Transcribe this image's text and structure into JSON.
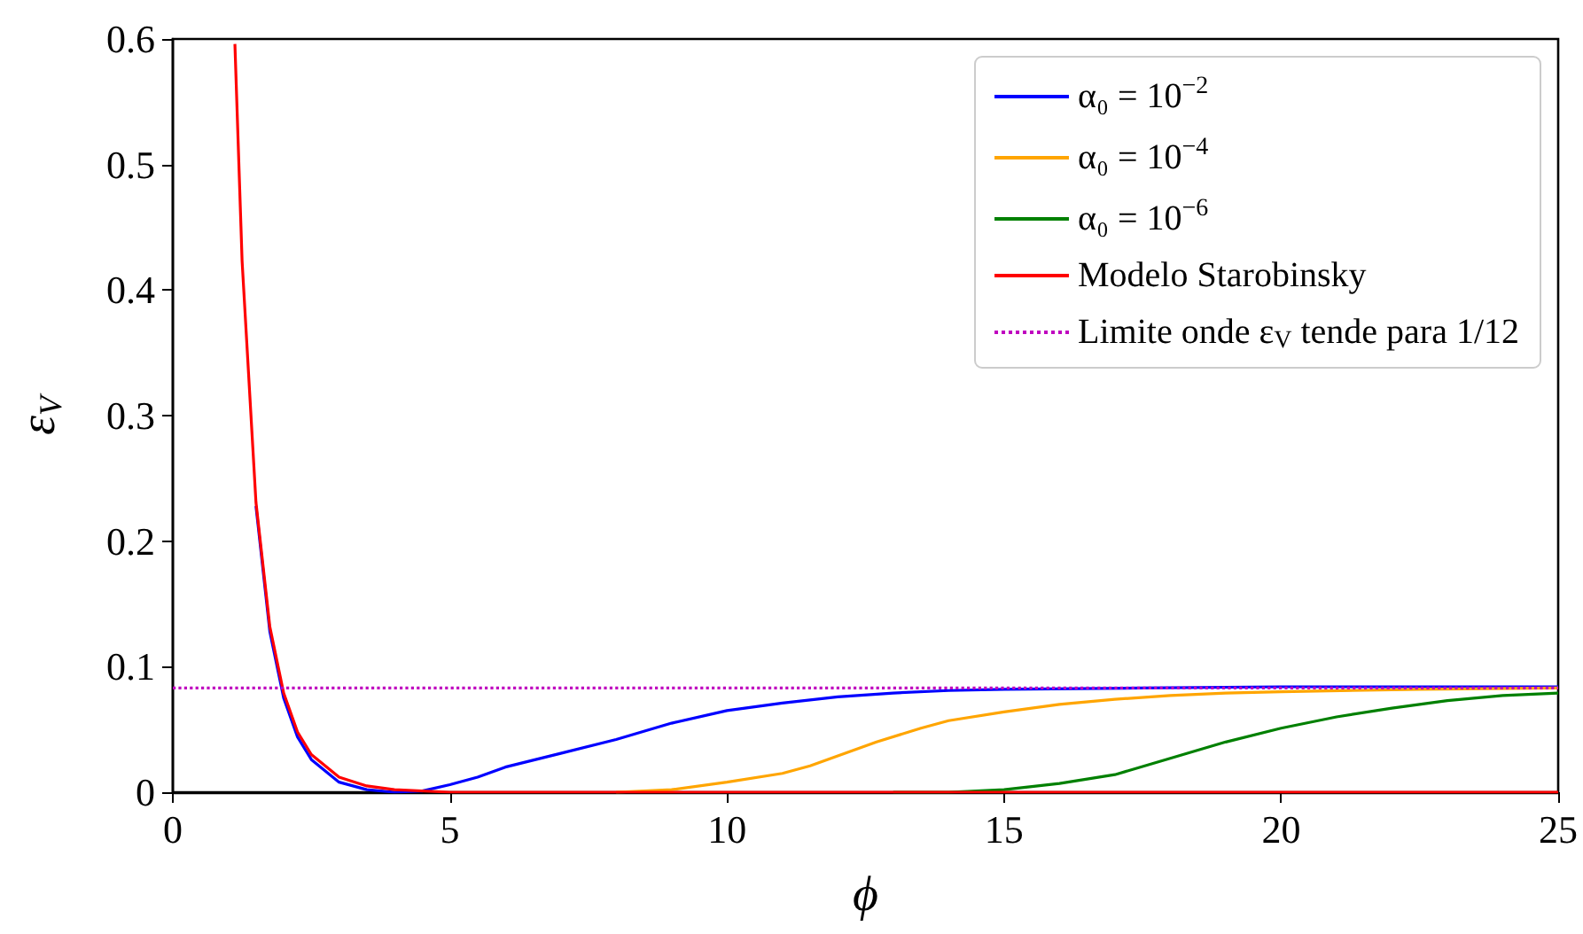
{
  "chart_data": {
    "type": "line",
    "xlabel": "ϕ",
    "ylabel": "ε$_{V}$",
    "xlim": [
      0,
      25
    ],
    "xticks": [
      0,
      5,
      10,
      15,
      20,
      25
    ],
    "ylim": [
      0,
      0.6
    ],
    "yticks": [
      0,
      0.1,
      0.2,
      0.3,
      0.4,
      0.5,
      0.6
    ],
    "grid": false,
    "legend": "top right",
    "marker": "none",
    "line_style": "solid",
    "series": [
      {
        "name": "α₀ = 10$^{−2}$",
        "color": "#0000ff",
        "x": [
          1.5,
          1.75,
          2,
          2.25,
          2.5,
          3,
          3.5,
          4,
          4.5,
          5,
          5.5,
          6,
          7,
          8,
          9,
          10,
          11,
          12,
          13,
          14,
          15,
          17.5,
          20,
          25
        ],
        "values": [
          0.228,
          0.128,
          0.075,
          0.044,
          0.026,
          0.008,
          0.002,
          0,
          0.001,
          0.006,
          0.012,
          0.02,
          0.031,
          0.042,
          0.055,
          0.065,
          0.071,
          0.076,
          0.079,
          0.081,
          0.082,
          0.083,
          0.084,
          0.084
        ]
      },
      {
        "name": "α₀ = 10$^{−4}$",
        "color": "#ffa500",
        "x": [
          8,
          9,
          10,
          11,
          11.5,
          12,
          12.7,
          13.5,
          14,
          15,
          16,
          17,
          18,
          19,
          20,
          22.5,
          25
        ],
        "values": [
          0,
          0.002,
          0.008,
          0.015,
          0.021,
          0.029,
          0.04,
          0.051,
          0.057,
          0.064,
          0.07,
          0.074,
          0.077,
          0.079,
          0.08,
          0.082,
          0.083
        ]
      },
      {
        "name": "α₀ = 10$^{−6}$",
        "color": "#008000",
        "x": [
          13,
          14,
          15,
          16,
          17,
          18,
          19,
          20,
          21,
          22,
          23,
          24,
          25
        ],
        "values": [
          0,
          0,
          0.002,
          0.007,
          0.014,
          0.027,
          0.04,
          0.051,
          0.06,
          0.067,
          0.073,
          0.077,
          0.079
        ]
      },
      {
        "name": "Modelo Starobinsky",
        "color": "#ff0000",
        "x": [
          1.12,
          1.25,
          1.5,
          1.75,
          2,
          2.25,
          2.5,
          3,
          3.5,
          4,
          5,
          6,
          7,
          25
        ],
        "values": [
          0.596,
          0.423,
          0.231,
          0.132,
          0.079,
          0.048,
          0.03,
          0.012,
          0.005,
          0.002,
          0,
          0,
          0,
          0
        ]
      },
      {
        "name": "Limite onde ε$_{V}$ tende para 1/12",
        "color": "#bf00bf",
        "line_style": "dotted",
        "x": [
          0,
          25
        ],
        "values": [
          0.083,
          0.083
        ]
      }
    ]
  }
}
